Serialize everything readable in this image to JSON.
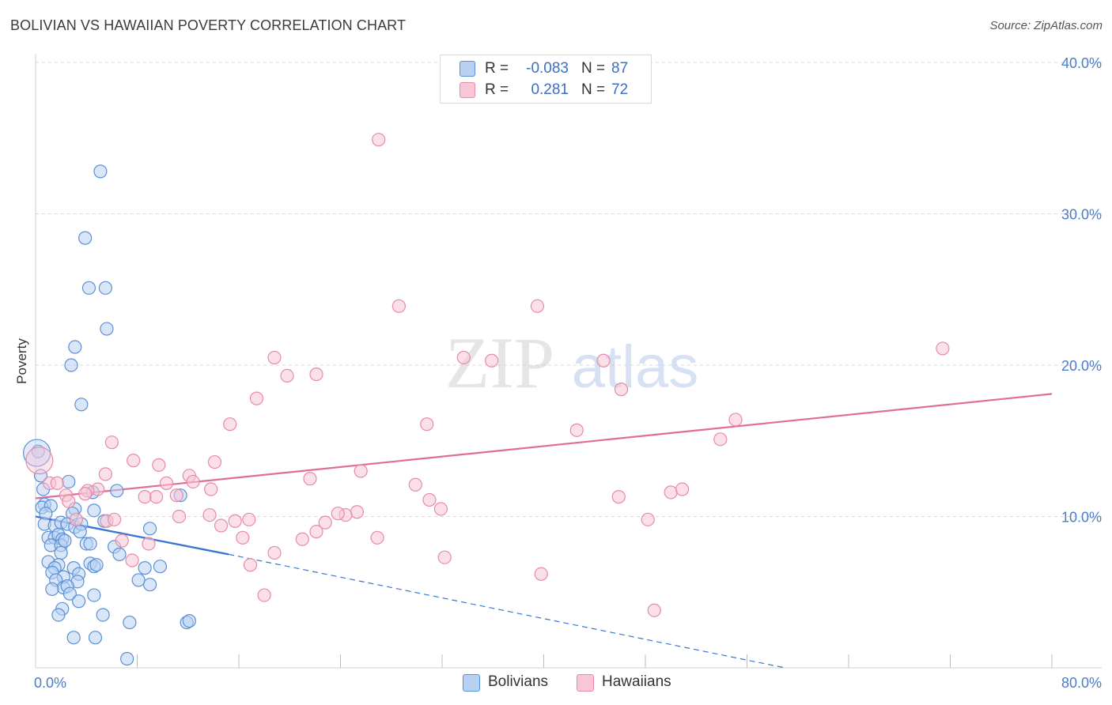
{
  "chart_data": {
    "type": "scatter",
    "title": "BOLIVIAN VS HAWAIIAN POVERTY CORRELATION CHART",
    "source": "Source: ZipAtlas.com",
    "ylabel": "Poverty",
    "xlim": [
      0,
      80
    ],
    "ylim": [
      0,
      40
    ],
    "y_ticks": [
      "40.0%",
      "30.0%",
      "20.0%",
      "10.0%"
    ],
    "y_tick_values": [
      40,
      30,
      20,
      10
    ],
    "x_tick_left": "0.0%",
    "x_tick_right": "80.0%",
    "watermark": "ZIPatlas",
    "colors": {
      "bolivian_fill": "#b8d1f3",
      "bolivian_stroke": "#5b8fd6",
      "bolivian_line": "#3a76d0",
      "hawaiian_fill": "#f8c6d6",
      "hawaiian_stroke": "#e68aa8",
      "hawaiian_line": "#e06d96",
      "tick_text": "#4a7cc9",
      "grid": "#d8d8d8"
    },
    "legend": {
      "rows": [
        {
          "series": "Bolivians",
          "r_label": "R =",
          "r_value": "-0.083",
          "n_label": "N =",
          "n_value": "87"
        },
        {
          "series": "Hawaiians",
          "r_label": "R =",
          "r_value": "0.281",
          "n_label": "N =",
          "n_value": "72"
        }
      ]
    },
    "series": [
      {
        "name": "Bolivians",
        "trend": {
          "x": [
            0,
            15.2
          ],
          "y": [
            10.0,
            7.5
          ],
          "dashed_to": [
            59.0,
            0.0
          ]
        },
        "points": [
          [
            5.1,
            32.8
          ],
          [
            3.9,
            28.4
          ],
          [
            4.2,
            25.1
          ],
          [
            5.5,
            25.1
          ],
          [
            5.6,
            22.4
          ],
          [
            3.1,
            21.2
          ],
          [
            2.8,
            20.0
          ],
          [
            3.6,
            17.4
          ],
          [
            0.2,
            14.3
          ],
          [
            0.4,
            12.7
          ],
          [
            0.6,
            11.8
          ],
          [
            2.6,
            12.3
          ],
          [
            6.4,
            11.7
          ],
          [
            4.5,
            11.6
          ],
          [
            11.4,
            11.4
          ],
          [
            0.7,
            10.8
          ],
          [
            0.5,
            10.6
          ],
          [
            1.2,
            10.7
          ],
          [
            3.1,
            10.5
          ],
          [
            0.8,
            10.2
          ],
          [
            2.9,
            10.2
          ],
          [
            4.6,
            10.4
          ],
          [
            0.7,
            9.5
          ],
          [
            1.5,
            9.4
          ],
          [
            2.0,
            9.6
          ],
          [
            2.5,
            9.5
          ],
          [
            3.1,
            9.3
          ],
          [
            3.6,
            9.5
          ],
          [
            5.4,
            9.7
          ],
          [
            9.0,
            9.2
          ],
          [
            1.0,
            8.6
          ],
          [
            1.5,
            8.6
          ],
          [
            1.8,
            8.8
          ],
          [
            2.1,
            8.5
          ],
          [
            3.5,
            9.0
          ],
          [
            1.2,
            8.1
          ],
          [
            2.0,
            8.1
          ],
          [
            2.3,
            8.4
          ],
          [
            4.0,
            8.2
          ],
          [
            4.3,
            8.2
          ],
          [
            6.2,
            8.0
          ],
          [
            2.0,
            7.6
          ],
          [
            6.6,
            7.5
          ],
          [
            1.0,
            7.0
          ],
          [
            1.8,
            6.8
          ],
          [
            1.5,
            6.6
          ],
          [
            1.3,
            6.3
          ],
          [
            2.2,
            6.0
          ],
          [
            3.0,
            6.6
          ],
          [
            3.4,
            6.2
          ],
          [
            4.3,
            6.9
          ],
          [
            4.6,
            6.7
          ],
          [
            4.8,
            6.8
          ],
          [
            8.6,
            6.6
          ],
          [
            9.8,
            6.7
          ],
          [
            1.6,
            5.8
          ],
          [
            3.3,
            5.7
          ],
          [
            2.2,
            5.3
          ],
          [
            1.3,
            5.2
          ],
          [
            2.5,
            5.4
          ],
          [
            2.7,
            4.9
          ],
          [
            4.6,
            4.8
          ],
          [
            8.1,
            5.8
          ],
          [
            9.0,
            5.5
          ],
          [
            3.4,
            4.4
          ],
          [
            2.1,
            3.9
          ],
          [
            1.8,
            3.5
          ],
          [
            5.3,
            3.5
          ],
          [
            7.4,
            3.0
          ],
          [
            11.9,
            3.0
          ],
          [
            12.1,
            3.1
          ],
          [
            3.0,
            2.0
          ],
          [
            4.7,
            2.0
          ],
          [
            7.2,
            0.6
          ]
        ],
        "big_points": [
          [
            0.1,
            14.2
          ]
        ]
      },
      {
        "name": "Hawaiians",
        "trend": {
          "x": [
            0,
            80
          ],
          "y": [
            11.2,
            18.1
          ]
        },
        "points": [
          [
            27.0,
            34.9
          ],
          [
            28.6,
            23.9
          ],
          [
            39.5,
            23.9
          ],
          [
            71.4,
            21.1
          ],
          [
            18.8,
            20.5
          ],
          [
            33.7,
            20.5
          ],
          [
            35.9,
            20.3
          ],
          [
            44.7,
            20.3
          ],
          [
            19.8,
            19.3
          ],
          [
            22.1,
            19.4
          ],
          [
            46.1,
            18.4
          ],
          [
            17.4,
            17.8
          ],
          [
            15.3,
            16.1
          ],
          [
            30.8,
            16.1
          ],
          [
            55.1,
            16.4
          ],
          [
            42.6,
            15.7
          ],
          [
            53.9,
            15.1
          ],
          [
            6.0,
            14.9
          ],
          [
            7.7,
            13.7
          ],
          [
            9.7,
            13.4
          ],
          [
            14.1,
            13.6
          ],
          [
            25.6,
            13.0
          ],
          [
            5.5,
            12.8
          ],
          [
            12.1,
            12.7
          ],
          [
            21.6,
            12.5
          ],
          [
            1.1,
            12.2
          ],
          [
            1.7,
            12.2
          ],
          [
            10.3,
            12.2
          ],
          [
            12.4,
            12.3
          ],
          [
            29.9,
            12.1
          ],
          [
            4.9,
            11.8
          ],
          [
            4.1,
            11.7
          ],
          [
            13.8,
            11.8
          ],
          [
            2.4,
            11.4
          ],
          [
            3.9,
            11.5
          ],
          [
            8.6,
            11.3
          ],
          [
            9.5,
            11.3
          ],
          [
            11.1,
            11.4
          ],
          [
            2.6,
            11.0
          ],
          [
            31.0,
            11.1
          ],
          [
            45.9,
            11.3
          ],
          [
            50.0,
            11.6
          ],
          [
            50.9,
            11.8
          ],
          [
            31.9,
            10.5
          ],
          [
            25.3,
            10.3
          ],
          [
            24.4,
            10.1
          ],
          [
            23.8,
            10.2
          ],
          [
            13.7,
            10.1
          ],
          [
            11.3,
            10.0
          ],
          [
            3.2,
            9.8
          ],
          [
            5.6,
            9.7
          ],
          [
            6.2,
            9.8
          ],
          [
            14.6,
            9.4
          ],
          [
            15.7,
            9.7
          ],
          [
            16.8,
            9.8
          ],
          [
            22.8,
            9.6
          ],
          [
            48.2,
            9.8
          ],
          [
            22.1,
            9.0
          ],
          [
            16.3,
            8.6
          ],
          [
            21.0,
            8.5
          ],
          [
            26.9,
            8.6
          ],
          [
            6.8,
            8.4
          ],
          [
            8.9,
            8.2
          ],
          [
            18.8,
            7.6
          ],
          [
            32.2,
            7.3
          ],
          [
            7.6,
            7.1
          ],
          [
            16.9,
            6.8
          ],
          [
            39.8,
            6.2
          ],
          [
            18.0,
            4.8
          ],
          [
            48.7,
            3.8
          ]
        ],
        "big_points": [
          [
            0.3,
            13.7
          ]
        ]
      }
    ]
  }
}
